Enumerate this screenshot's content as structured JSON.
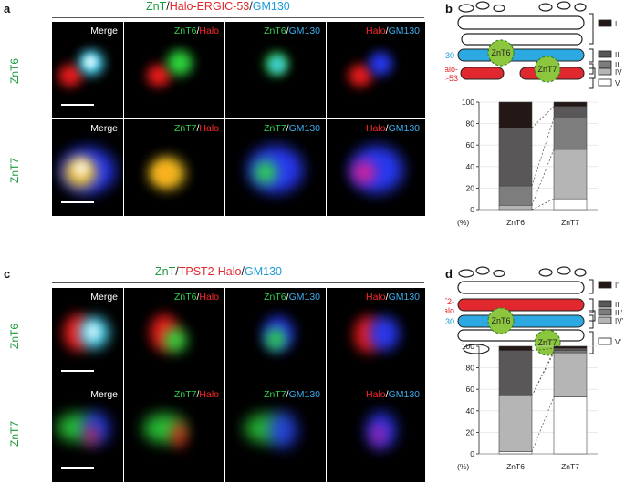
{
  "panel_a": {
    "letter": "a",
    "title_parts": [
      {
        "text": "ZnT",
        "color": "g"
      },
      {
        "text": "/",
        "color": "k"
      },
      {
        "text": "Halo-ERGIC-53",
        "color": "r"
      },
      {
        "text": "/",
        "color": "k"
      },
      {
        "text": "GM130",
        "color": "b"
      }
    ],
    "rows": [
      "ZnT6",
      "ZnT7"
    ],
    "columns": [
      [
        {
          "t": "Merge",
          "c": "w"
        }
      ],
      [
        {
          "t": "ZnT6",
          "c": "g"
        },
        {
          "t": "/",
          "c": "s"
        },
        {
          "t": "Halo",
          "c": "r"
        }
      ],
      [
        {
          "t": "ZnT6",
          "c": "g"
        },
        {
          "t": "/",
          "c": "s"
        },
        {
          "t": "GM130",
          "c": "b"
        }
      ],
      [
        {
          "t": "Halo",
          "c": "r"
        },
        {
          "t": "/",
          "c": "s"
        },
        {
          "t": "GM130",
          "c": "b"
        }
      ]
    ],
    "columns_row2": [
      [
        {
          "t": "Merge",
          "c": "w"
        }
      ],
      [
        {
          "t": "ZnT7",
          "c": "g"
        },
        {
          "t": "/",
          "c": "s"
        },
        {
          "t": "Halo",
          "c": "r"
        }
      ],
      [
        {
          "t": "ZnT7",
          "c": "g"
        },
        {
          "t": "/",
          "c": "s"
        },
        {
          "t": "GM130",
          "c": "b"
        }
      ],
      [
        {
          "t": "Halo",
          "c": "r"
        },
        {
          "t": "/",
          "c": "s"
        },
        {
          "t": "GM130",
          "c": "b"
        }
      ]
    ]
  },
  "panel_c": {
    "letter": "c",
    "title_parts": [
      {
        "text": "ZnT",
        "color": "g"
      },
      {
        "text": "/",
        "color": "k"
      },
      {
        "text": "TPST2-Halo",
        "color": "r"
      },
      {
        "text": "/",
        "color": "k"
      },
      {
        "text": "GM130",
        "color": "b"
      }
    ],
    "rows": [
      "ZnT6",
      "ZnT7"
    ]
  },
  "panel_b": {
    "letter": "b",
    "gm130": "GM130",
    "halo": "Halo-\nERGIC-53",
    "znt6": "ZnT6",
    "znt7": "ZnT7",
    "legend": [
      {
        "label": "I",
        "color": "#231815"
      },
      {
        "label": "II",
        "color": "#595757"
      },
      {
        "label": "III",
        "color": "#7d7d7d"
      },
      {
        "label": "IV",
        "color": "#b5b5b5"
      },
      {
        "label": "V",
        "color": "#ffffff"
      }
    ]
  },
  "panel_d": {
    "letter": "d",
    "tpst2": "TPST2-\nHalo",
    "gm130": "GM130",
    "znt6": "ZnT6",
    "znt7": "ZnT7",
    "legend": [
      {
        "label": "I'",
        "color": "#231815"
      },
      {
        "label": "II'",
        "color": "#595757"
      },
      {
        "label": "III'",
        "color": "#7d7d7d"
      },
      {
        "label": "IV'",
        "color": "#b5b5b5"
      },
      {
        "label": "V'",
        "color": "#ffffff"
      }
    ]
  },
  "chart_data": [
    {
      "type": "bar",
      "stacked": true,
      "categories": [
        "ZnT6",
        "ZnT7"
      ],
      "ylabel": "(%)",
      "ylim": [
        0,
        100
      ],
      "yticks": [
        0,
        20,
        40,
        60,
        80,
        100
      ],
      "series": [
        {
          "name": "V",
          "color": "#ffffff",
          "values": [
            0,
            10
          ]
        },
        {
          "name": "IV",
          "color": "#b5b5b5",
          "values": [
            4,
            46
          ]
        },
        {
          "name": "III",
          "color": "#7d7d7d",
          "values": [
            18,
            29
          ]
        },
        {
          "name": "II",
          "color": "#595757",
          "values": [
            54,
            11
          ]
        },
        {
          "name": "I",
          "color": "#231815",
          "values": [
            24,
            4
          ]
        }
      ]
    },
    {
      "type": "bar",
      "stacked": true,
      "categories": [
        "ZnT6",
        "ZnT7"
      ],
      "ylabel": "(%)",
      "ylim": [
        0,
        100
      ],
      "yticks": [
        0,
        20,
        40,
        60,
        80,
        100
      ],
      "series": [
        {
          "name": "V'",
          "color": "#ffffff",
          "values": [
            2,
            53
          ]
        },
        {
          "name": "IV'",
          "color": "#b5b5b5",
          "values": [
            52,
            41
          ]
        },
        {
          "name": "III'",
          "color": "#7d7d7d",
          "values": [
            0,
            2
          ]
        },
        {
          "name": "II'",
          "color": "#595757",
          "values": [
            42,
            2
          ]
        },
        {
          "name": "I'",
          "color": "#231815",
          "values": [
            4,
            2
          ]
        }
      ]
    }
  ]
}
